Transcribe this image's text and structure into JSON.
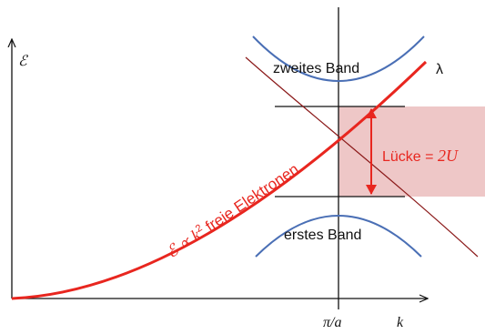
{
  "diagram": {
    "y_axis_label": "ℰ",
    "x_axis_label": "k",
    "x_tick_label": "π/a",
    "lambda_label": "λ",
    "upper_band_label": "zweites Band",
    "lower_band_label": "erstes Band",
    "gap_label": "Lücke = ",
    "gap_value": "2U",
    "free_curve_formula": "ℰ ∝ k",
    "free_curve_exponent": "2",
    "free_curve_text": " freie Elektronen"
  },
  "colors": {
    "free_electron_curve": "#e8261f",
    "bands": "#4a6fb5",
    "lambda_curve": "#8b1a1a",
    "gap_shade": "#e8b4b4",
    "gap_text": "#e8261f",
    "axes": "#111111"
  },
  "icons": {
    "gap_arrow": "double-headed-arrow-icon",
    "axis_arrows": "arrowhead-icon"
  }
}
